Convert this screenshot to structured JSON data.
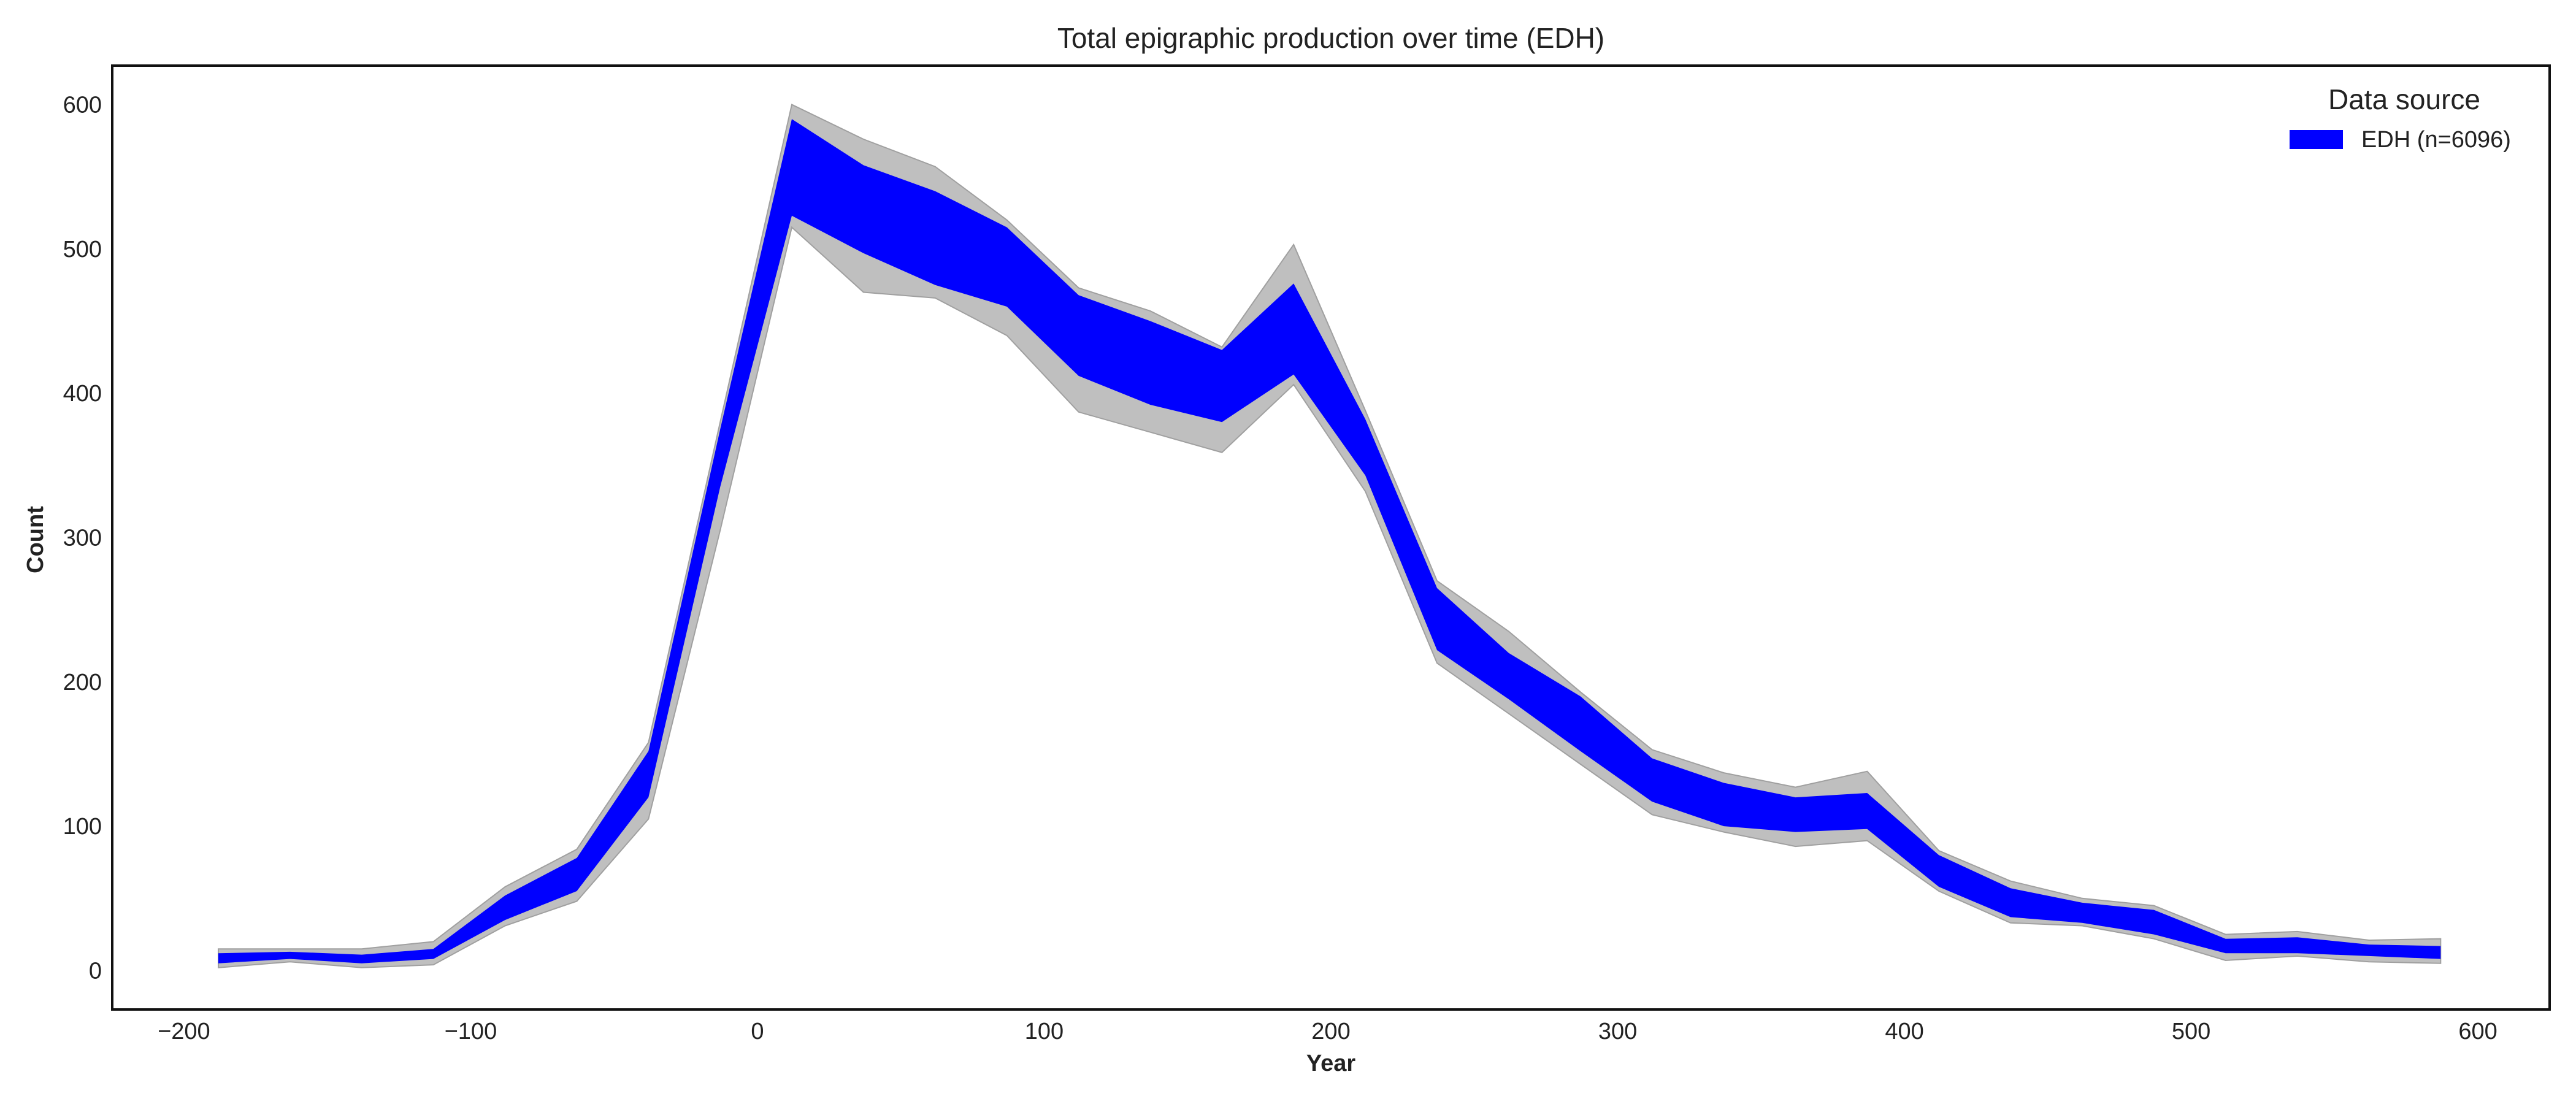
{
  "chart_data": {
    "type": "area",
    "title": "Total epigraphic production over time (EDH)",
    "xlabel": "Year",
    "ylabel": "Count",
    "xlim": [
      -225,
      625
    ],
    "ylim": [
      -27,
      627
    ],
    "xticks": [
      -200,
      -100,
      0,
      100,
      200,
      300,
      400,
      500,
      600
    ],
    "xtick_labels": [
      "−200",
      "−100",
      "0",
      "100",
      "200",
      "300",
      "400",
      "500",
      "600"
    ],
    "yticks": [
      0,
      100,
      200,
      300,
      400,
      500,
      600
    ],
    "ytick_labels": [
      "0",
      "100",
      "200",
      "300",
      "400",
      "500",
      "600"
    ],
    "grid": false,
    "legend": {
      "title": "Data source",
      "placement": "top-right",
      "entries": [
        {
          "label": "EDH (n=6096)",
          "color": "#0000ff"
        }
      ]
    },
    "x": [
      -188,
      -163,
      -138,
      -113,
      -88,
      -63,
      -38,
      -13,
      12,
      37,
      62,
      87,
      112,
      137,
      162,
      187,
      212,
      237,
      262,
      287,
      312,
      337,
      362,
      387,
      412,
      437,
      462,
      487,
      512,
      537,
      562,
      587
    ],
    "series": [
      {
        "name": "EDH (n=6096)",
        "kind": "band",
        "color": "#0000ff",
        "lower": [
          5,
          8,
          5,
          8,
          35,
          55,
          120,
          335,
          523,
          497,
          475,
          460,
          412,
          392,
          380,
          413,
          343,
          222,
          188,
          152,
          117,
          100,
          96,
          98,
          58,
          37,
          33,
          25,
          12,
          12,
          10,
          8
        ],
        "upper": [
          12,
          13,
          11,
          15,
          52,
          78,
          152,
          375,
          590,
          558,
          540,
          515,
          468,
          450,
          430,
          476,
          382,
          265,
          220,
          190,
          147,
          130,
          120,
          123,
          80,
          57,
          47,
          42,
          22,
          23,
          18,
          17
        ]
      },
      {
        "name": "",
        "kind": "band",
        "color": "#bfbfbf",
        "lower": [
          2,
          6,
          2,
          4,
          31,
          48,
          105,
          305,
          515,
          470,
          466,
          440,
          387,
          373,
          359,
          406,
          332,
          213,
          178,
          143,
          108,
          96,
          86,
          90,
          55,
          33,
          31,
          22,
          7,
          10,
          6,
          5
        ],
        "upper": [
          15,
          15,
          15,
          20,
          58,
          84,
          158,
          380,
          600,
          576,
          557,
          520,
          473,
          457,
          432,
          503,
          388,
          270,
          235,
          193,
          153,
          137,
          127,
          138,
          83,
          62,
          50,
          45,
          25,
          27,
          21,
          22
        ]
      }
    ]
  }
}
